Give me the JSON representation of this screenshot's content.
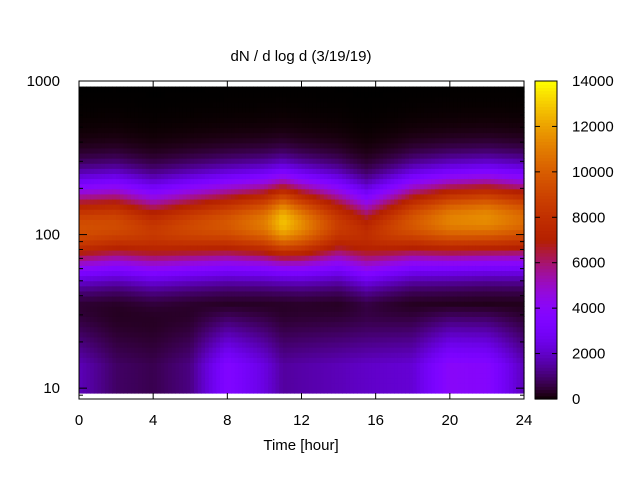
{
  "chart_data": {
    "type": "heatmap",
    "title": "dN / d log d (3/19/19)",
    "xlabel": "Time [hour]",
    "ylabel": "",
    "xlim": [
      0,
      24
    ],
    "ylim": [
      8.5,
      1000
    ],
    "y_scale": "log",
    "x_ticks": [
      "0",
      "4",
      "8",
      "12",
      "16",
      "20",
      "24"
    ],
    "y_ticks": [
      "10",
      "100",
      "1000"
    ],
    "colorbar": {
      "range": [
        0,
        14000
      ],
      "ticks": [
        "0",
        "2000",
        "4000",
        "6000",
        "8000",
        "10000",
        "12000",
        "14000"
      ],
      "palette": "gnuplot (black-purple-red-orange-yellow)"
    },
    "grid": false,
    "time_hours": [
      0,
      2,
      4,
      6,
      8,
      10,
      11,
      12,
      14,
      15.5,
      18,
      20,
      22,
      24
    ],
    "peak_diameter": [
      110,
      115,
      105,
      112,
      118,
      120,
      122,
      118,
      115,
      100,
      120,
      125,
      128,
      125
    ],
    "peak_value": [
      9500,
      9300,
      8500,
      9200,
      9800,
      11000,
      12800,
      11500,
      8600,
      7800,
      9800,
      11200,
      11500,
      10500
    ],
    "small_particle_level": [
      1800,
      900,
      700,
      1200,
      3600,
      2400,
      1500,
      1600,
      1800,
      2000,
      2200,
      4000,
      3800,
      1800
    ]
  }
}
